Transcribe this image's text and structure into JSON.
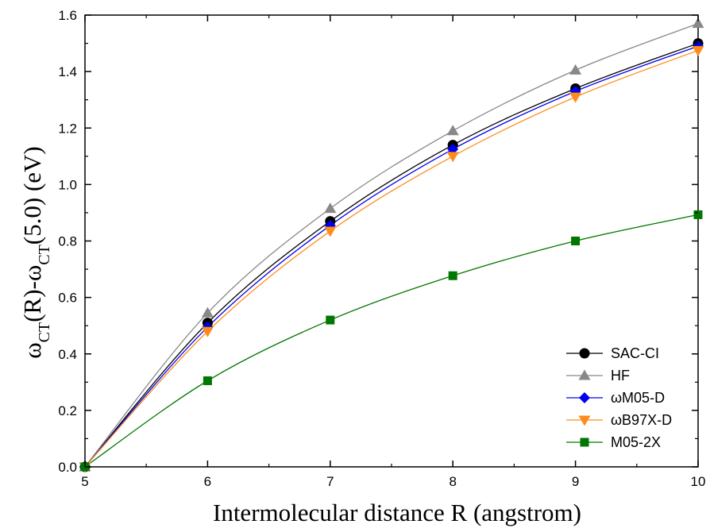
{
  "chart_data": {
    "type": "line",
    "title": "",
    "xlabel": "Intermolecular distance R (angstrom)",
    "ylabel": {
      "parts": [
        {
          "text": "ω",
          "sub": false
        },
        {
          "text": "CT",
          "sub": true
        },
        {
          "text": "(R)-ω",
          "sub": false
        },
        {
          "text": "CT",
          "sub": true
        },
        {
          "text": "(5.0) (eV)",
          "sub": false
        }
      ]
    },
    "xlim": [
      5,
      10
    ],
    "ylim": [
      0.0,
      1.6
    ],
    "x_ticks": [
      5,
      6,
      7,
      8,
      9,
      10
    ],
    "x_tick_labels": [
      "5",
      "6",
      "7",
      "8",
      "9",
      "10"
    ],
    "y_ticks": [
      0.0,
      0.2,
      0.4,
      0.6,
      0.8,
      1.0,
      1.2,
      1.4,
      1.6
    ],
    "y_tick_labels": [
      "0.0",
      "0.2",
      "0.4",
      "0.6",
      "0.8",
      "1.0",
      "1.2",
      "1.4",
      "1.6"
    ],
    "grid": false,
    "legend_position": "bottom-right",
    "x": [
      5,
      6,
      7,
      8,
      9,
      10
    ],
    "series": [
      {
        "name": "SAC-CI",
        "marker": "circle",
        "color": "#000000",
        "line_color": "#000000",
        "values": [
          0.0,
          0.51,
          0.87,
          1.14,
          1.34,
          1.5
        ]
      },
      {
        "name": "HF",
        "marker": "triangle-up",
        "color": "#888888",
        "line_color": "#888888",
        "values": [
          0.0,
          0.545,
          0.915,
          1.19,
          1.405,
          1.57
        ]
      },
      {
        "name": "ωM05-D",
        "marker": "diamond",
        "color": "#0000ee",
        "line_color": "#0000ee",
        "values": [
          0.0,
          0.495,
          0.855,
          1.125,
          1.33,
          1.49
        ]
      },
      {
        "name": "ωB97X-D",
        "marker": "triangle-down",
        "color": "#ff8c1a",
        "line_color": "#ff8c1a",
        "values": [
          0.0,
          0.48,
          0.835,
          1.1,
          1.31,
          1.475
        ]
      },
      {
        "name": "M05-2X",
        "marker": "square",
        "color": "#007700",
        "line_color": "#007700",
        "values": [
          0.0,
          0.305,
          0.52,
          0.677,
          0.8,
          0.893
        ]
      }
    ]
  }
}
